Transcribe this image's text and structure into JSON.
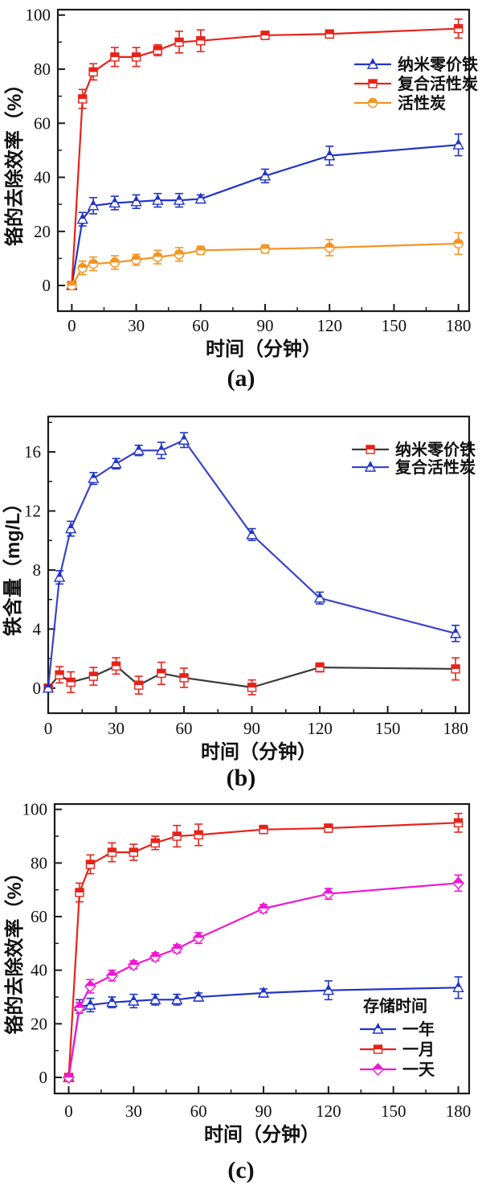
{
  "chart_data": [
    {
      "type": "line",
      "panel": "a",
      "caption": "(a)",
      "title": "",
      "xlabel": "时间（分钟）",
      "ylabel": "铬的去除效率（%）",
      "xlim": [
        -6.5,
        185
      ],
      "ylim": [
        -9.5,
        102
      ],
      "xticks": [
        0,
        30,
        60,
        90,
        120,
        150,
        180
      ],
      "yticks": [
        0,
        20,
        40,
        60,
        80,
        100
      ],
      "x_minor_step": 15,
      "y_minor_step": 10,
      "grid": false,
      "legend": {
        "position": "upper-right",
        "title": ""
      },
      "x": [
        0,
        5,
        10,
        20,
        30,
        40,
        50,
        60,
        90,
        120,
        180
      ],
      "series": [
        {
          "name": "纳米零价铁",
          "marker": "triangle",
          "color": "#2134c7",
          "line_color": "#2134c7",
          "values": [
            0,
            24.5,
            29.5,
            30.5,
            31,
            31.5,
            31.5,
            32,
            40.5,
            48,
            52
          ],
          "errors": [
            0.5,
            2.5,
            3,
            2.5,
            2.5,
            2.5,
            2.5,
            1.5,
            2.5,
            3.5,
            4
          ]
        },
        {
          "name": "复合活性炭",
          "marker": "square",
          "color": "#e82218",
          "line_color": "#e82218",
          "values": [
            0,
            69,
            79,
            84.5,
            84.5,
            87,
            90,
            90.5,
            92.5,
            93,
            95
          ],
          "errors": [
            0.5,
            3.5,
            3,
            3.5,
            3.5,
            2,
            4,
            4,
            1.5,
            1.5,
            3.5
          ]
        },
        {
          "name": "活性炭",
          "marker": "circle",
          "color": "#f59423",
          "line_color": "#f59423",
          "values": [
            0,
            6.5,
            8,
            8.5,
            9.5,
            10.5,
            11.5,
            13,
            13.5,
            14,
            15.5
          ],
          "errors": [
            0.8,
            2.5,
            2.5,
            2.5,
            2,
            2.5,
            2.5,
            1.5,
            1.5,
            3,
            4
          ]
        }
      ]
    },
    {
      "type": "line",
      "panel": "b",
      "caption": "(b)",
      "title": "",
      "xlabel": "时间（分钟）",
      "ylabel": "铁含量（mg/L）",
      "xlim": [
        0,
        186
      ],
      "ylim": [
        -1.7,
        18.4
      ],
      "xticks": [
        0,
        30,
        60,
        90,
        120,
        150,
        180
      ],
      "yticks": [
        0,
        4,
        8,
        12,
        16
      ],
      "x_minor_step": 15,
      "y_minor_step": 2,
      "grid": false,
      "legend": {
        "position": "upper-right",
        "title": ""
      },
      "x": [
        0,
        5,
        10,
        20,
        30,
        40,
        50,
        60,
        90,
        120,
        180
      ],
      "series": [
        {
          "name": "纳米零价铁",
          "marker": "square",
          "color": "#e82218",
          "line_color": "#3a3a3a",
          "values": [
            0,
            0.9,
            0.4,
            0.8,
            1.5,
            0.2,
            1,
            0.7,
            0.05,
            1.4,
            1.3
          ],
          "errors": [
            0.2,
            0.55,
            0.7,
            0.6,
            0.55,
            0.6,
            0.75,
            0.65,
            0.5,
            0.3,
            0.75
          ]
        },
        {
          "name": "复合活性炭",
          "marker": "triangle",
          "color": "#2134c7",
          "line_color": "#3b43c9",
          "values": [
            0,
            7.5,
            10.8,
            14.2,
            15.2,
            16.1,
            16.1,
            16.8,
            10.4,
            6.1,
            3.7
          ],
          "errors": [
            0.15,
            0.45,
            0.5,
            0.4,
            0.35,
            0.35,
            0.55,
            0.5,
            0.4,
            0.4,
            0.55
          ]
        }
      ]
    },
    {
      "type": "line",
      "panel": "c",
      "caption": "(c)",
      "title": "",
      "xlabel": "时间（分钟）",
      "ylabel": "铬的去除效率（%）",
      "xlim": [
        -6.5,
        185
      ],
      "ylim": [
        -6,
        102
      ],
      "xticks": [
        0,
        30,
        60,
        90,
        120,
        150,
        180
      ],
      "yticks": [
        0,
        20,
        40,
        60,
        80,
        100
      ],
      "x_minor_step": 15,
      "y_minor_step": 10,
      "grid": false,
      "legend": {
        "position": "lower-right",
        "title": "存储时间"
      },
      "x": [
        0,
        5,
        10,
        20,
        30,
        40,
        50,
        60,
        90,
        120,
        180
      ],
      "series": [
        {
          "name": "一年",
          "marker": "triangle",
          "color": "#2134c7",
          "line_color": "#2134c7",
          "values": [
            0,
            26.5,
            27,
            28,
            28.5,
            29,
            29,
            30,
            31.5,
            32.5,
            33.5
          ],
          "errors": [
            0.5,
            2.5,
            2.5,
            2,
            2.5,
            2,
            2,
            1.5,
            1.5,
            3.5,
            4
          ]
        },
        {
          "name": "一月",
          "marker": "square",
          "color": "#e82218",
          "line_color": "#e82218",
          "values": [
            0,
            69,
            79.5,
            84,
            84,
            87.5,
            90,
            90.5,
            92.5,
            93,
            95
          ],
          "errors": [
            0.5,
            3.5,
            3.5,
            3.5,
            3,
            2.5,
            4,
            4,
            1.5,
            1.5,
            3.5
          ]
        },
        {
          "name": "一天",
          "marker": "diamond",
          "color": "#ef17d3",
          "line_color": "#ef17d3",
          "values": [
            0,
            26,
            34,
            38,
            42,
            45,
            48,
            52,
            63,
            68.5,
            72.5
          ],
          "errors": [
            0.5,
            2,
            2.5,
            2,
            1.5,
            1.5,
            1.5,
            2,
            1.5,
            2,
            3
          ]
        }
      ]
    }
  ]
}
